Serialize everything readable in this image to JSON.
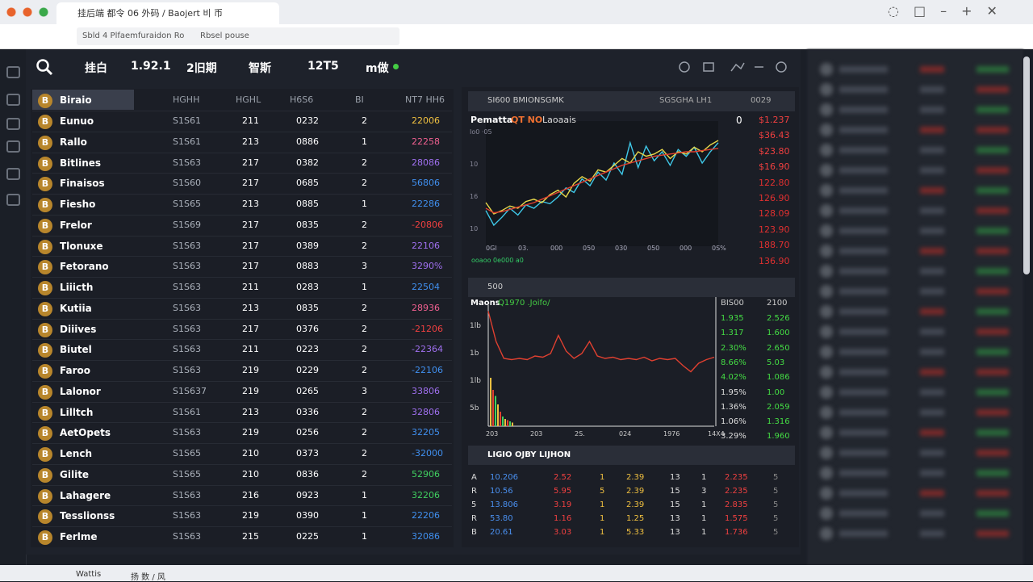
{
  "browser": {
    "tab": "挂后端 都令 06 外码 / Baojert 비 币",
    "address": "Sbld 4  Plfaemfuraidon Ro",
    "bookmark": "Rbsel pouse"
  },
  "toolbar": {
    "items": [
      "挂白",
      "1.92.1",
      "2旧期",
      "智斯",
      "12T5",
      "m做"
    ]
  },
  "table": {
    "icon": "B",
    "header_name": "Biraio",
    "columns": [
      "HGHH",
      "HGHL",
      "H6S6",
      "BI",
      "NT7 HH6"
    ],
    "rows": [
      [
        "Eunuo",
        "S1S61",
        "211",
        "0232",
        "2",
        "22006"
      ],
      [
        "Rallo",
        "S1S61",
        "213",
        "0886",
        "1",
        "22258"
      ],
      [
        "Bitlines",
        "S1S63",
        "217",
        "0382",
        "2",
        "28086"
      ],
      [
        "Finaisos",
        "S1S60",
        "217",
        "0685",
        "2",
        "56806"
      ],
      [
        "Fiesho",
        "S1S65",
        "213",
        "0885",
        "1",
        "22286"
      ],
      [
        "Frelor",
        "S1S69",
        "217",
        "0835",
        "2",
        "-20806"
      ],
      [
        "Tlonuxe",
        "S1S63",
        "217",
        "0389",
        "2",
        "22106"
      ],
      [
        "Fetorano",
        "S1S63",
        "217",
        "0883",
        "3",
        "3290%"
      ],
      [
        "Liiicth",
        "S1S63",
        "211",
        "0283",
        "1",
        "22504"
      ],
      [
        "Kutiia",
        "S1S63",
        "213",
        "0835",
        "2",
        "28936"
      ],
      [
        "Diiives",
        "S1S63",
        "217",
        "0376",
        "2",
        "-21206"
      ],
      [
        "Biutel",
        "S1S63",
        "211",
        "0223",
        "2",
        "-22364"
      ],
      [
        "Faroo",
        "S1S63",
        "219",
        "0229",
        "2",
        "-22106"
      ],
      [
        "Lalonor",
        "S1S637",
        "219",
        "0265",
        "3",
        "33806"
      ],
      [
        "Lilltch",
        "S1S61",
        "213",
        "0336",
        "2",
        "32806"
      ],
      [
        "AetOpets",
        "S1S63",
        "219",
        "0256",
        "2",
        "32205"
      ],
      [
        "Lench",
        "S1S65",
        "210",
        "0373",
        "2",
        "-32000"
      ],
      [
        "Gilite",
        "S1S65",
        "210",
        "0836",
        "2",
        "52906"
      ],
      [
        "Lahagere",
        "S1S63",
        "216",
        "0923",
        "1",
        "32206"
      ],
      [
        "Tesslionss",
        "S1S63",
        "219",
        "0390",
        "1",
        "22206"
      ],
      [
        "Ferlme",
        "S1S63",
        "215",
        "0225",
        "1",
        "32086"
      ]
    ],
    "value_colors": [
      "#f0c040",
      "#f06090",
      "#a070f0",
      "#4090f0",
      "#4090f0",
      "#f04040",
      "#a070f0",
      "#a070f0",
      "#4090f0",
      "#f06090",
      "#f04040",
      "#a070f0",
      "#4090f0",
      "#a070f0",
      "#a070f0",
      "#4090f0",
      "#4090f0",
      "#40d060",
      "#40d060",
      "#4090f0",
      "#4090f0"
    ]
  },
  "main_chart": {
    "header": "SI600 BMIONSGMK",
    "header_right": "SGSGHA LH1",
    "header_code": "0029",
    "title": "Pematta",
    "title_accent": "QT NO",
    "title_tail": "Laoaais",
    "zero": "0",
    "ylabels": [
      "Io0 ·05",
      "10",
      "16",
      "10"
    ],
    "xlabels": [
      "0Gl",
      "03.",
      "000",
      "050",
      "030",
      "050",
      "000",
      "0S%"
    ],
    "legend_note": "ooaoo 0e000 a0",
    "prices": [
      "$1.237",
      "$36.43",
      "$23.80",
      "$16.90",
      "122.80",
      "126.90",
      "128.09",
      "123.90",
      "188.70",
      "136.90"
    ],
    "ylim": [
      0,
      100
    ],
    "series": [
      {
        "color": "#3fc8e8",
        "values": [
          28,
          15,
          22,
          30,
          24,
          33,
          30,
          36,
          34,
          40,
          48,
          44,
          56,
          50,
          62,
          55,
          70,
          60,
          88,
          66,
          85,
          72,
          80,
          68,
          82,
          76,
          84,
          70,
          80,
          88
        ]
      },
      {
        "color": "#e8d84a",
        "values": [
          35,
          25,
          28,
          32,
          30,
          36,
          38,
          35,
          42,
          46,
          40,
          52,
          58,
          54,
          64,
          62,
          68,
          74,
          70,
          80,
          76,
          78,
          82,
          74,
          80,
          78,
          84,
          80,
          86,
          90
        ]
      },
      {
        "color": "#e04030",
        "values": [
          30,
          26,
          27,
          29,
          31,
          33,
          35,
          38,
          41,
          44,
          47,
          50,
          53,
          56,
          59,
          62,
          65,
          68,
          70,
          72,
          74,
          76,
          77,
          78,
          79,
          80,
          80,
          81,
          82,
          83
        ]
      }
    ]
  },
  "volume_chart": {
    "header": "500",
    "title": "Maons",
    "title_accent": "Q1970 .Joifo/",
    "ylabels": [
      "1lb",
      "1b",
      "1lb",
      "5b"
    ],
    "xlabels": [
      "203",
      "203",
      "2S.",
      "024",
      "1976",
      "14X4"
    ],
    "ylim": [
      0,
      100
    ],
    "line": {
      "color": "#e04030",
      "values": [
        95,
        70,
        56,
        55,
        56,
        55,
        58,
        57,
        60,
        75,
        62,
        56,
        60,
        70,
        58,
        56,
        57,
        55,
        56,
        55,
        57,
        54,
        56,
        55,
        56,
        50,
        45,
        52,
        55,
        57
      ]
    },
    "bars": {
      "colors": [
        "#f0c040",
        "#e04030",
        "#40d060"
      ],
      "values": [
        40,
        30,
        25,
        18,
        12,
        8,
        6,
        5,
        4,
        3
      ]
    },
    "list_header": [
      "BIS00",
      "2100"
    ],
    "list": [
      [
        "1.935",
        "2.526"
      ],
      [
        "1.317",
        "1.600"
      ],
      [
        "2.30%",
        "2.650"
      ],
      [
        "8.66%",
        "5.03"
      ],
      [
        "4.02%",
        "1.086"
      ],
      [
        "1.95%",
        "1.00"
      ],
      [
        "1.36%",
        "2.059"
      ],
      [
        "1.06%",
        "1.316"
      ],
      [
        "3.29%",
        "1.960"
      ]
    ]
  },
  "orders": {
    "title": "LIGIO OJBY LIJHON",
    "rows": [
      [
        "A",
        "10.206",
        "2.52",
        "1",
        "2.39",
        "13",
        "1",
        "2.235",
        "5"
      ],
      [
        "R",
        "10.56",
        "5.95",
        "5",
        "2.39",
        "15",
        "3",
        "2.235",
        "5"
      ],
      [
        "5",
        "13.806",
        "3.19",
        "1",
        "2.39",
        "15",
        "1",
        "2.835",
        "5"
      ],
      [
        "R",
        "53.80",
        "1.16",
        "1",
        "1.25",
        "13",
        "1",
        "1.575",
        "5"
      ],
      [
        "B",
        "20.61",
        "3.03",
        "1",
        "5.33",
        "13",
        "1",
        "1.736",
        "5"
      ]
    ]
  },
  "taskbar": {
    "items": [
      "Wattis",
      "扬 数 / 风"
    ]
  }
}
